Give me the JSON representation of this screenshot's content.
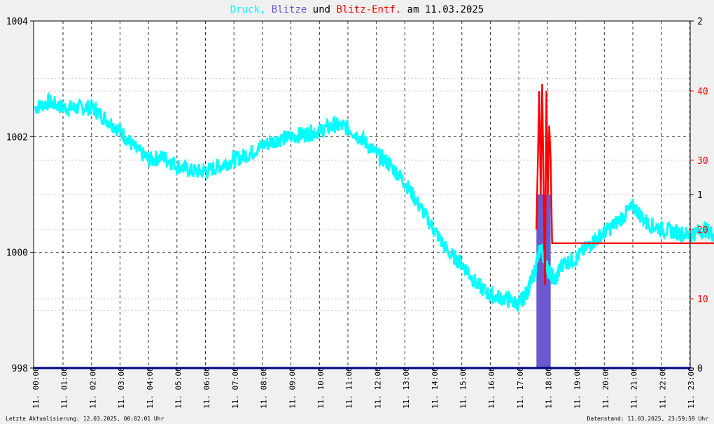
{
  "title": {
    "part1": "Druck,",
    "part2": "Blitze",
    "part3": "und",
    "part4": "Blitz-Entf.",
    "part5": "am 11.03.2025"
  },
  "footer": {
    "left": "Letzte Aktualisierung: 12.03.2025, 00:02:01 Uhr",
    "right": "Datenstand: 11.03.2025, 23:59:59 Uhr"
  },
  "colors": {
    "pressure": "#00ffff",
    "strikes": "#6a5acd",
    "distance": "#ff0000",
    "baseline": "#00007f",
    "grid": "#000000",
    "background": "#ffffff"
  },
  "chart_data": {
    "type": "line",
    "left_axis": {
      "min": 998,
      "max": 1004,
      "ticks": [
        "998",
        "1000",
        "1002",
        "1004"
      ]
    },
    "right_axis_strikes": {
      "min": 0,
      "max": 2,
      "ticks": [
        "0",
        "1",
        "2"
      ]
    },
    "right_axis_distance": {
      "ticks": [
        "10",
        "20",
        "30",
        "40"
      ]
    },
    "x_labels": [
      "11. 00:00",
      "11. 01:00",
      "11. 02:00",
      "11. 03:00",
      "11. 04:00",
      "11. 05:00",
      "11. 06:00",
      "11. 07:00",
      "11. 08:00",
      "11. 09:00",
      "11. 10:00",
      "11. 11:00",
      "11. 12:00",
      "11. 13:00",
      "11. 14:00",
      "11. 15:00",
      "11. 16:00",
      "11. 17:00",
      "11. 18:00",
      "11. 19:00",
      "11. 20:00",
      "11. 21:00",
      "11. 22:00",
      "11. 23:00"
    ],
    "pressure_series": {
      "hours": [
        0,
        0.5,
        1,
        1.5,
        2,
        2.5,
        3,
        3.5,
        4,
        4.5,
        5,
        5.5,
        6,
        6.5,
        7,
        7.5,
        8,
        8.5,
        9,
        9.5,
        10,
        10.5,
        11,
        11.5,
        12,
        12.5,
        13,
        13.5,
        14,
        14.5,
        15,
        15.5,
        16,
        16.5,
        17,
        17.25,
        17.5,
        17.75,
        18,
        18.25,
        18.5,
        19,
        19.5,
        20,
        20.5,
        21,
        21.5,
        22,
        22.5,
        23,
        23.5,
        23.9
      ],
      "values": [
        1002.5,
        1002.6,
        1002.5,
        1002.5,
        1002.5,
        1002.3,
        1002.1,
        1001.8,
        1001.6,
        1001.65,
        1001.5,
        1001.4,
        1001.4,
        1001.5,
        1001.6,
        1001.7,
        1001.85,
        1001.95,
        1002.0,
        1002.05,
        1002.1,
        1002.2,
        1002.15,
        1001.95,
        1001.7,
        1001.5,
        1001.2,
        1000.8,
        1000.4,
        1000.0,
        999.8,
        999.45,
        999.25,
        999.2,
        999.1,
        999.3,
        999.6,
        1000.1,
        999.7,
        999.5,
        999.8,
        999.9,
        1000.15,
        1000.35,
        1000.55,
        1000.8,
        1000.5,
        1000.4,
        1000.35,
        1000.3,
        1000.4,
        1000.3
      ]
    },
    "strike_bars": [
      {
        "from": 17.6,
        "to": 18.1,
        "value": 1.0
      }
    ],
    "distance_series": {
      "hours": [
        17.6,
        17.7,
        17.75,
        17.8,
        17.9,
        17.95,
        18.0,
        18.05,
        18.1,
        18.15,
        23.9
      ],
      "values": [
        20,
        40,
        25,
        41,
        12,
        40,
        25,
        35,
        30,
        18,
        18
      ]
    }
  }
}
